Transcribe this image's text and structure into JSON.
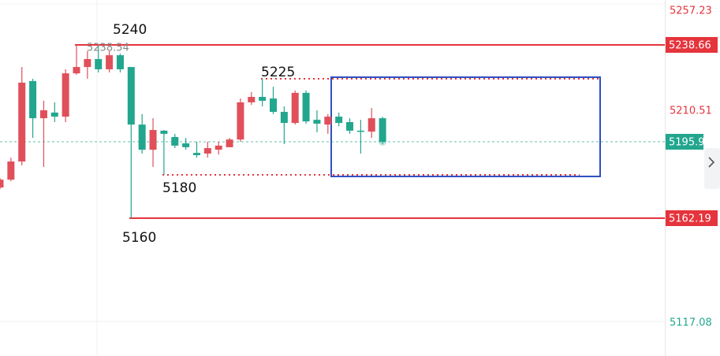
{
  "chart_data": {
    "type": "candlestick",
    "open": [
      5175.7,
      5179.2,
      5187.2,
      5222.7,
      5206.3,
      5208.8,
      5207.0,
      5226.1,
      5228.9,
      5232.4,
      5227.9,
      5234.1,
      5228.9,
      5203.5,
      5192.4,
      5200.8,
      5198.0,
      5195.2,
      5191.0,
      5190.7,
      5192.4,
      5193.5,
      5196.9,
      5213.3,
      5215.7,
      5215.0,
      5209.1,
      5204.2,
      5217.5,
      5205.6,
      5203.5,
      5207.0,
      5204.6,
      5200.8,
      5200.4,
      5206.3
    ],
    "high": [
      5179.9,
      5188.9,
      5228.9,
      5223.7,
      5214.0,
      5213.3,
      5227.9,
      5238.66,
      5235.9,
      5238.54,
      5235.9,
      5234.8,
      5228.9,
      5208.1,
      5206.3,
      5201.1,
      5199.4,
      5197.6,
      5195.9,
      5195.9,
      5195.9,
      5197.6,
      5215.0,
      5217.8,
      5223.7,
      5220.2,
      5211.5,
      5218.5,
      5218.5,
      5209.8,
      5208.1,
      5208.8,
      5206.3,
      5205.6,
      5210.8,
      5207.0
    ],
    "low": [
      5175.0,
      5178.5,
      5185.5,
      5197.6,
      5184.8,
      5204.6,
      5204.6,
      5225.5,
      5223.7,
      5226.5,
      5226.5,
      5226.5,
      5162.19,
      5190.7,
      5184.8,
      5181.3,
      5193.1,
      5192.4,
      5188.9,
      5188.9,
      5190.3,
      5193.5,
      5195.9,
      5212.2,
      5211.5,
      5208.1,
      5194.9,
      5203.5,
      5203.9,
      5200.1,
      5199.4,
      5202.8,
      5199.4,
      5190.7,
      5197.6,
      5194.9
    ],
    "close": [
      5179.2,
      5187.2,
      5222.0,
      5206.3,
      5209.8,
      5207.0,
      5226.1,
      5228.9,
      5232.4,
      5227.9,
      5234.1,
      5227.9,
      5203.5,
      5192.4,
      5201.1,
      5199.4,
      5194.2,
      5193.5,
      5190.0,
      5193.1,
      5194.2,
      5196.9,
      5213.3,
      5215.7,
      5214.0,
      5209.1,
      5204.2,
      5217.5,
      5204.9,
      5203.9,
      5207.0,
      5204.2,
      5200.8,
      5200.4,
      5206.3,
      5195.91
    ],
    "up_color": "#e0505a",
    "down_color": "#22a68e",
    "ylim": [
      5101.36,
      5258.47
    ],
    "yticks": [
      5257.23,
      5210.51,
      5117.08
    ],
    "lines": [
      {
        "value": 5238.66,
        "color": "#e5343c"
      },
      {
        "value": 5162.19,
        "color": "#e5343c"
      }
    ],
    "dotted_lines": [
      {
        "value": 5223.7,
        "color": "#e5343c"
      },
      {
        "value": 5181.3,
        "color": "#e5343c"
      }
    ],
    "rectangle": {
      "top": 5224.4,
      "bottom": 5180.6,
      "color": "#2f4fc0"
    },
    "annotations": [
      "5240",
      "5238.54",
      "5225",
      "5180",
      "5160"
    ]
  }
}
